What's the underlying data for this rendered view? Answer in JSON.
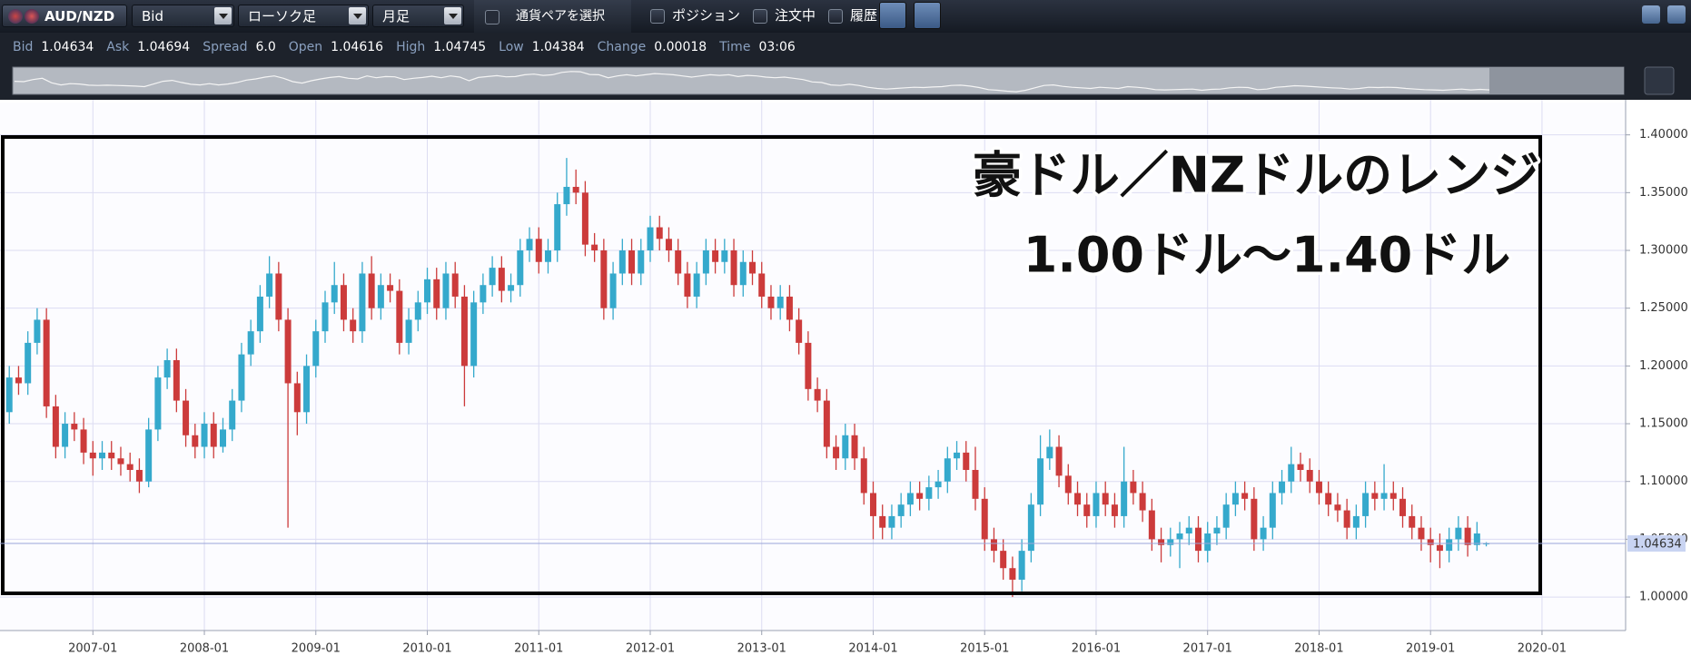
{
  "toolbar": {
    "pair": "AUD/NZD",
    "price_type": "Bid",
    "chart_style": "ローソク足",
    "timeframe": "月足",
    "select_pair": "通貨ペアを選択",
    "checkboxes": [
      "ポジション",
      "注文中",
      "履歴"
    ]
  },
  "quote": [
    {
      "label": "Bid",
      "value": "1.04634"
    },
    {
      "label": "Ask",
      "value": "1.04694"
    },
    {
      "label": "Spread",
      "value": "6.0"
    },
    {
      "label": "Open",
      "value": "1.04616"
    },
    {
      "label": "High",
      "value": "1.04745"
    },
    {
      "label": "Low",
      "value": "1.04384"
    },
    {
      "label": "Change",
      "value": "0.00018"
    },
    {
      "label": "Time",
      "value": "03:06"
    }
  ],
  "chart_data": {
    "type": "candlestick",
    "annotations": [
      "豪ドル／NZドルのレンジ",
      "1.00ドル～1.40ドル"
    ],
    "up_color": "#35a9cc",
    "down_color": "#cc3b3b",
    "grid": true,
    "xlim": [
      "2006-03",
      "2020-10"
    ],
    "xticks": [
      "2007-01",
      "2008-01",
      "2009-01",
      "2010-01",
      "2011-01",
      "2012-01",
      "2013-01",
      "2014-01",
      "2015-01",
      "2016-01",
      "2017-01",
      "2018-01",
      "2019-01",
      "2020-01"
    ],
    "ylim": [
      0.971,
      1.428
    ],
    "yticks": [
      {
        "value": 1.0,
        "label": "1.00000"
      },
      {
        "value": 1.05,
        "label": "1.05000"
      },
      {
        "value": 1.1,
        "label": "1.10000"
      },
      {
        "value": 1.15,
        "label": "1.15000"
      },
      {
        "value": 1.2,
        "label": "1.20000"
      },
      {
        "value": 1.25,
        "label": "1.25000"
      },
      {
        "value": 1.3,
        "label": "1.30000"
      },
      {
        "value": 1.35,
        "label": "1.35000"
      },
      {
        "value": 1.4,
        "label": "1.40000"
      }
    ],
    "last_price": 1.04634,
    "x": [
      "2006-04",
      "2006-05",
      "2006-06",
      "2006-07",
      "2006-08",
      "2006-09",
      "2006-10",
      "2006-11",
      "2006-12",
      "2007-01",
      "2007-02",
      "2007-03",
      "2007-04",
      "2007-05",
      "2007-06",
      "2007-07",
      "2007-08",
      "2007-09",
      "2007-10",
      "2007-11",
      "2007-12",
      "2008-01",
      "2008-02",
      "2008-03",
      "2008-04",
      "2008-05",
      "2008-06",
      "2008-07",
      "2008-08",
      "2008-09",
      "2008-10",
      "2008-11",
      "2008-12",
      "2009-01",
      "2009-02",
      "2009-03",
      "2009-04",
      "2009-05",
      "2009-06",
      "2009-07",
      "2009-08",
      "2009-09",
      "2009-10",
      "2009-11",
      "2009-12",
      "2010-01",
      "2010-02",
      "2010-03",
      "2010-04",
      "2010-05",
      "2010-06",
      "2010-07",
      "2010-08",
      "2010-09",
      "2010-10",
      "2010-11",
      "2010-12",
      "2011-01",
      "2011-02",
      "2011-03",
      "2011-04",
      "2011-05",
      "2011-06",
      "2011-07",
      "2011-08",
      "2011-09",
      "2011-10",
      "2011-11",
      "2011-12",
      "2012-01",
      "2012-02",
      "2012-03",
      "2012-04",
      "2012-05",
      "2012-06",
      "2012-07",
      "2012-08",
      "2012-09",
      "2012-10",
      "2012-11",
      "2012-12",
      "2013-01",
      "2013-02",
      "2013-03",
      "2013-04",
      "2013-05",
      "2013-06",
      "2013-07",
      "2013-08",
      "2013-09",
      "2013-10",
      "2013-11",
      "2013-12",
      "2014-01",
      "2014-02",
      "2014-03",
      "2014-04",
      "2014-05",
      "2014-06",
      "2014-07",
      "2014-08",
      "2014-09",
      "2014-10",
      "2014-11",
      "2014-12",
      "2015-01",
      "2015-02",
      "2015-03",
      "2015-04",
      "2015-05",
      "2015-06",
      "2015-07",
      "2015-08",
      "2015-09",
      "2015-10",
      "2015-11",
      "2015-12",
      "2016-01",
      "2016-02",
      "2016-03",
      "2016-04",
      "2016-05",
      "2016-06",
      "2016-07",
      "2016-08",
      "2016-09",
      "2016-10",
      "2016-11",
      "2016-12",
      "2017-01",
      "2017-02",
      "2017-03",
      "2017-04",
      "2017-05",
      "2017-06",
      "2017-07",
      "2017-08",
      "2017-09",
      "2017-10",
      "2017-11",
      "2017-12",
      "2018-01",
      "2018-02",
      "2018-03",
      "2018-04",
      "2018-05",
      "2018-06",
      "2018-07",
      "2018-08",
      "2018-09",
      "2018-10",
      "2018-11",
      "2018-12",
      "2019-01",
      "2019-02",
      "2019-03",
      "2019-04",
      "2019-05",
      "2019-06",
      "2019-07"
    ],
    "open": [
      1.16,
      1.19,
      1.185,
      1.22,
      1.24,
      1.165,
      1.13,
      1.15,
      1.145,
      1.125,
      1.12,
      1.125,
      1.12,
      1.115,
      1.11,
      1.1,
      1.145,
      1.19,
      1.205,
      1.17,
      1.14,
      1.13,
      1.15,
      1.13,
      1.145,
      1.17,
      1.21,
      1.23,
      1.26,
      1.28,
      1.24,
      1.185,
      1.16,
      1.2,
      1.23,
      1.255,
      1.27,
      1.24,
      1.23,
      1.28,
      1.25,
      1.27,
      1.265,
      1.22,
      1.24,
      1.255,
      1.275,
      1.25,
      1.28,
      1.26,
      1.2,
      1.255,
      1.27,
      1.285,
      1.265,
      1.27,
      1.3,
      1.31,
      1.29,
      1.3,
      1.34,
      1.355,
      1.35,
      1.305,
      1.3,
      1.25,
      1.28,
      1.3,
      1.28,
      1.3,
      1.32,
      1.31,
      1.3,
      1.28,
      1.26,
      1.28,
      1.3,
      1.29,
      1.3,
      1.27,
      1.29,
      1.28,
      1.26,
      1.25,
      1.26,
      1.24,
      1.22,
      1.18,
      1.17,
      1.13,
      1.12,
      1.14,
      1.12,
      1.09,
      1.07,
      1.06,
      1.07,
      1.08,
      1.09,
      1.085,
      1.095,
      1.1,
      1.12,
      1.125,
      1.11,
      1.085,
      1.05,
      1.04,
      1.025,
      1.015,
      1.04,
      1.08,
      1.12,
      1.13,
      1.105,
      1.09,
      1.08,
      1.07,
      1.09,
      1.08,
      1.07,
      1.1,
      1.09,
      1.075,
      1.05,
      1.045,
      1.05,
      1.055,
      1.06,
      1.04,
      1.055,
      1.06,
      1.08,
      1.09,
      1.085,
      1.05,
      1.06,
      1.09,
      1.1,
      1.115,
      1.11,
      1.1,
      1.09,
      1.08,
      1.075,
      1.06,
      1.07,
      1.09,
      1.085,
      1.09,
      1.085,
      1.07,
      1.06,
      1.05,
      1.045,
      1.04,
      1.05,
      1.06,
      1.045,
      1.04616
    ],
    "high": [
      1.2,
      1.2,
      1.23,
      1.25,
      1.25,
      1.175,
      1.16,
      1.16,
      1.155,
      1.135,
      1.135,
      1.135,
      1.13,
      1.125,
      1.12,
      1.155,
      1.2,
      1.215,
      1.215,
      1.18,
      1.15,
      1.16,
      1.16,
      1.155,
      1.18,
      1.22,
      1.24,
      1.27,
      1.295,
      1.29,
      1.25,
      1.195,
      1.21,
      1.24,
      1.265,
      1.29,
      1.28,
      1.25,
      1.29,
      1.295,
      1.28,
      1.28,
      1.275,
      1.25,
      1.265,
      1.285,
      1.285,
      1.29,
      1.29,
      1.27,
      1.265,
      1.28,
      1.295,
      1.295,
      1.28,
      1.31,
      1.32,
      1.32,
      1.31,
      1.35,
      1.38,
      1.37,
      1.36,
      1.315,
      1.31,
      1.29,
      1.31,
      1.31,
      1.31,
      1.33,
      1.33,
      1.32,
      1.31,
      1.29,
      1.29,
      1.31,
      1.31,
      1.31,
      1.31,
      1.3,
      1.3,
      1.29,
      1.27,
      1.27,
      1.27,
      1.25,
      1.23,
      1.19,
      1.18,
      1.14,
      1.15,
      1.15,
      1.13,
      1.1,
      1.08,
      1.08,
      1.09,
      1.1,
      1.1,
      1.105,
      1.11,
      1.13,
      1.135,
      1.135,
      1.13,
      1.095,
      1.06,
      1.05,
      1.035,
      1.05,
      1.09,
      1.14,
      1.145,
      1.14,
      1.115,
      1.1,
      1.09,
      1.1,
      1.1,
      1.09,
      1.13,
      1.11,
      1.1,
      1.085,
      1.06,
      1.06,
      1.065,
      1.07,
      1.07,
      1.065,
      1.07,
      1.09,
      1.1,
      1.1,
      1.095,
      1.07,
      1.1,
      1.11,
      1.13,
      1.125,
      1.12,
      1.11,
      1.1,
      1.09,
      1.085,
      1.08,
      1.1,
      1.1,
      1.115,
      1.1,
      1.095,
      1.08,
      1.07,
      1.06,
      1.055,
      1.06,
      1.07,
      1.07,
      1.065,
      1.04745
    ],
    "low": [
      1.15,
      1.175,
      1.175,
      1.21,
      1.155,
      1.12,
      1.12,
      1.135,
      1.115,
      1.105,
      1.11,
      1.11,
      1.105,
      1.1,
      1.09,
      1.095,
      1.135,
      1.18,
      1.16,
      1.13,
      1.12,
      1.12,
      1.12,
      1.125,
      1.135,
      1.16,
      1.2,
      1.22,
      1.25,
      1.23,
      1.06,
      1.14,
      1.15,
      1.19,
      1.22,
      1.245,
      1.23,
      1.22,
      1.22,
      1.24,
      1.24,
      1.255,
      1.21,
      1.21,
      1.23,
      1.245,
      1.24,
      1.24,
      1.25,
      1.165,
      1.19,
      1.245,
      1.26,
      1.255,
      1.255,
      1.26,
      1.29,
      1.28,
      1.28,
      1.29,
      1.33,
      1.34,
      1.295,
      1.29,
      1.24,
      1.24,
      1.27,
      1.27,
      1.27,
      1.29,
      1.3,
      1.29,
      1.27,
      1.25,
      1.25,
      1.27,
      1.28,
      1.28,
      1.26,
      1.26,
      1.27,
      1.25,
      1.24,
      1.24,
      1.23,
      1.21,
      1.17,
      1.16,
      1.12,
      1.11,
      1.11,
      1.11,
      1.08,
      1.05,
      1.05,
      1.05,
      1.06,
      1.07,
      1.075,
      1.075,
      1.085,
      1.09,
      1.11,
      1.1,
      1.075,
      1.04,
      1.03,
      1.015,
      1.0,
      1.005,
      1.03,
      1.07,
      1.11,
      1.095,
      1.08,
      1.07,
      1.06,
      1.06,
      1.07,
      1.06,
      1.06,
      1.08,
      1.065,
      1.04,
      1.03,
      1.035,
      1.025,
      1.045,
      1.03,
      1.03,
      1.045,
      1.05,
      1.07,
      1.075,
      1.04,
      1.04,
      1.05,
      1.08,
      1.09,
      1.1,
      1.09,
      1.08,
      1.07,
      1.065,
      1.05,
      1.05,
      1.06,
      1.075,
      1.075,
      1.075,
      1.06,
      1.05,
      1.04,
      1.03,
      1.025,
      1.03,
      1.04,
      1.035,
      1.04,
      1.04384
    ],
    "close": [
      1.19,
      1.185,
      1.22,
      1.24,
      1.165,
      1.13,
      1.15,
      1.145,
      1.125,
      1.12,
      1.125,
      1.12,
      1.115,
      1.11,
      1.1,
      1.145,
      1.19,
      1.205,
      1.17,
      1.14,
      1.13,
      1.15,
      1.13,
      1.145,
      1.17,
      1.21,
      1.23,
      1.26,
      1.28,
      1.24,
      1.185,
      1.16,
      1.2,
      1.23,
      1.255,
      1.27,
      1.24,
      1.23,
      1.28,
      1.25,
      1.27,
      1.265,
      1.22,
      1.24,
      1.255,
      1.275,
      1.25,
      1.28,
      1.26,
      1.2,
      1.255,
      1.27,
      1.285,
      1.265,
      1.27,
      1.3,
      1.31,
      1.29,
      1.3,
      1.34,
      1.355,
      1.35,
      1.305,
      1.3,
      1.25,
      1.28,
      1.3,
      1.28,
      1.3,
      1.32,
      1.31,
      1.3,
      1.28,
      1.26,
      1.28,
      1.3,
      1.29,
      1.3,
      1.27,
      1.29,
      1.28,
      1.26,
      1.25,
      1.26,
      1.24,
      1.22,
      1.18,
      1.17,
      1.13,
      1.12,
      1.14,
      1.12,
      1.09,
      1.07,
      1.06,
      1.07,
      1.08,
      1.09,
      1.085,
      1.095,
      1.1,
      1.12,
      1.125,
      1.11,
      1.085,
      1.05,
      1.04,
      1.025,
      1.015,
      1.04,
      1.08,
      1.12,
      1.13,
      1.105,
      1.09,
      1.08,
      1.07,
      1.09,
      1.08,
      1.07,
      1.1,
      1.09,
      1.075,
      1.05,
      1.045,
      1.05,
      1.055,
      1.06,
      1.04,
      1.055,
      1.06,
      1.08,
      1.09,
      1.085,
      1.05,
      1.06,
      1.09,
      1.1,
      1.115,
      1.11,
      1.1,
      1.09,
      1.08,
      1.075,
      1.06,
      1.07,
      1.09,
      1.085,
      1.09,
      1.085,
      1.07,
      1.06,
      1.05,
      1.045,
      1.04,
      1.05,
      1.06,
      1.045,
      1.055,
      1.04634
    ]
  }
}
